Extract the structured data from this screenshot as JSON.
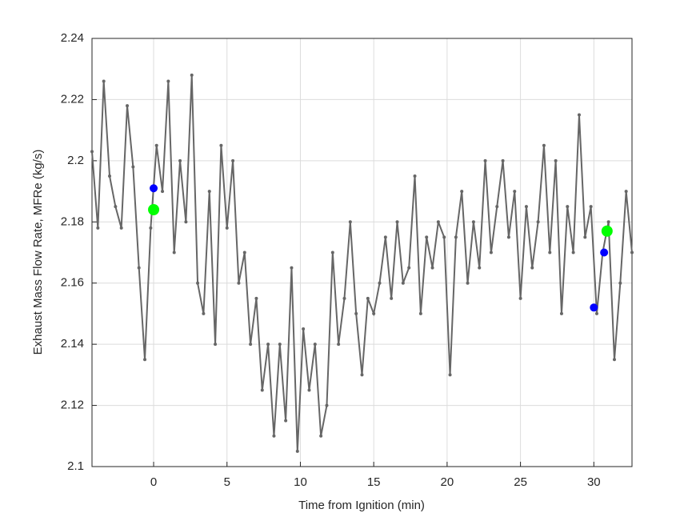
{
  "chart_data": {
    "type": "line",
    "xlabel": "Time from Ignition (min)",
    "ylabel": "Exhaust Mass Flow Rate, MFRe (kg/s)",
    "xlim": [
      -4.2,
      32.6
    ],
    "xticks": [
      0,
      5,
      10,
      15,
      20,
      25,
      30
    ],
    "ylim": [
      2.1,
      2.24
    ],
    "yticks": [
      2.1,
      2.12,
      2.14,
      2.16,
      2.18,
      2.2,
      2.22,
      2.24
    ],
    "grid": true,
    "series": [
      {
        "color": "#666666",
        "marker_size": 2,
        "x": [
          -4.2,
          -3.8,
          -3.4,
          -3.0,
          -2.6,
          -2.2,
          -1.8,
          -1.4,
          -1.0,
          -0.6,
          -0.2,
          0.2,
          0.6,
          1.0,
          1.4,
          1.8,
          2.2,
          2.6,
          3.0,
          3.4,
          3.8,
          4.2,
          4.6,
          5.0,
          5.4,
          5.8,
          6.2,
          6.6,
          7.0,
          7.4,
          7.8,
          8.2,
          8.6,
          9.0,
          9.4,
          9.8,
          10.2,
          10.6,
          11.0,
          11.4,
          11.8,
          12.2,
          12.6,
          13.0,
          13.4,
          13.8,
          14.2,
          14.6,
          15.0,
          15.4,
          15.8,
          16.2,
          16.6,
          17.0,
          17.4,
          17.8,
          18.2,
          18.6,
          19.0,
          19.4,
          19.8,
          20.2,
          20.6,
          21.0,
          21.4,
          21.8,
          22.2,
          22.6,
          23.0,
          23.4,
          23.8,
          24.2,
          24.6,
          25.0,
          25.4,
          25.8,
          26.2,
          26.6,
          27.0,
          27.4,
          27.8,
          28.2,
          28.6,
          29.0,
          29.4,
          29.8,
          30.2,
          30.6,
          31.0,
          31.4,
          31.8,
          32.2,
          32.6
        ],
        "values": [
          2.203,
          2.178,
          2.226,
          2.195,
          2.185,
          2.178,
          2.218,
          2.198,
          2.165,
          2.135,
          2.178,
          2.205,
          2.19,
          2.226,
          2.17,
          2.2,
          2.18,
          2.228,
          2.16,
          2.15,
          2.19,
          2.14,
          2.205,
          2.178,
          2.2,
          2.16,
          2.17,
          2.14,
          2.155,
          2.125,
          2.14,
          2.11,
          2.14,
          2.115,
          2.165,
          2.105,
          2.145,
          2.125,
          2.14,
          2.11,
          2.12,
          2.17,
          2.14,
          2.155,
          2.18,
          2.15,
          2.13,
          2.155,
          2.15,
          2.16,
          2.175,
          2.155,
          2.18,
          2.16,
          2.165,
          2.195,
          2.15,
          2.175,
          2.165,
          2.18,
          2.175,
          2.13,
          2.175,
          2.19,
          2.16,
          2.18,
          2.165,
          2.2,
          2.17,
          2.185,
          2.2,
          2.175,
          2.19,
          2.155,
          2.185,
          2.165,
          2.18,
          2.205,
          2.17,
          2.2,
          2.15,
          2.185,
          2.17,
          2.215,
          2.175,
          2.185,
          2.15,
          2.17,
          2.18,
          2.135,
          2.16,
          2.19,
          2.17
        ]
      },
      {
        "color": "#0000ff",
        "marker_size": 5,
        "markers_only": true,
        "x": [
          0.0,
          30.0,
          30.7
        ],
        "values": [
          2.191,
          2.152,
          2.17
        ]
      },
      {
        "color": "#00ff00",
        "marker_size": 7,
        "markers_only": true,
        "x": [
          0.0,
          30.9
        ],
        "values": [
          2.184,
          2.177
        ]
      }
    ]
  }
}
